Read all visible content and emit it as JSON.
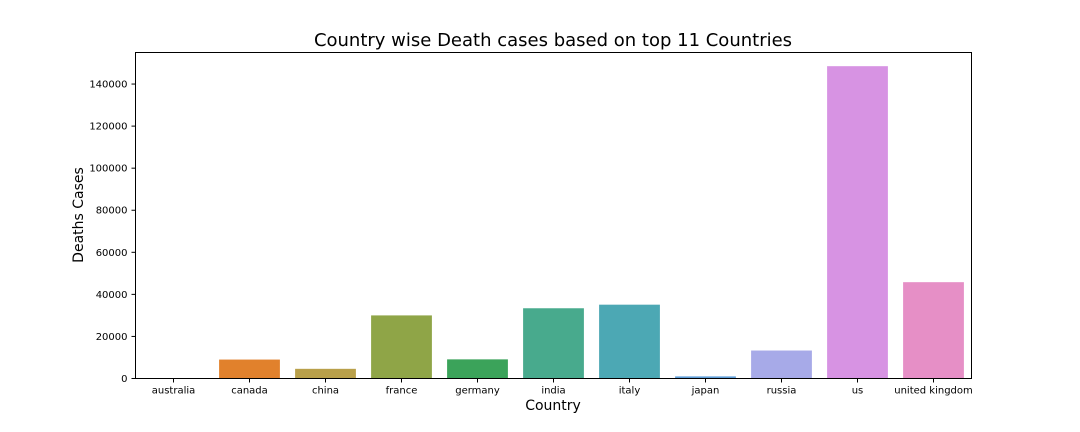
{
  "chart_data": {
    "type": "bar",
    "title": "Country wise Death cases based on top 11 Countries",
    "xlabel": "Country",
    "ylabel": "Deaths Cases",
    "ylim": [
      0,
      155000
    ],
    "yticks": [
      0,
      20000,
      40000,
      60000,
      80000,
      100000,
      120000,
      140000
    ],
    "grid": false,
    "categories": [
      "australia",
      "canada",
      "china",
      "france",
      "germany",
      "india",
      "italy",
      "japan",
      "russia",
      "us",
      "united kingdom"
    ],
    "values": [
      200,
      9000,
      4600,
      30000,
      9100,
      33400,
      35100,
      1000,
      13300,
      148500,
      45800
    ],
    "colors": [
      "#3274a1",
      "#e1812c",
      "#b9a04a",
      "#8fa547",
      "#3ba35a",
      "#48aa8d",
      "#4ca8b4",
      "#5f9ed8",
      "#a7aae8",
      "#d793e3",
      "#e68fc6"
    ]
  }
}
